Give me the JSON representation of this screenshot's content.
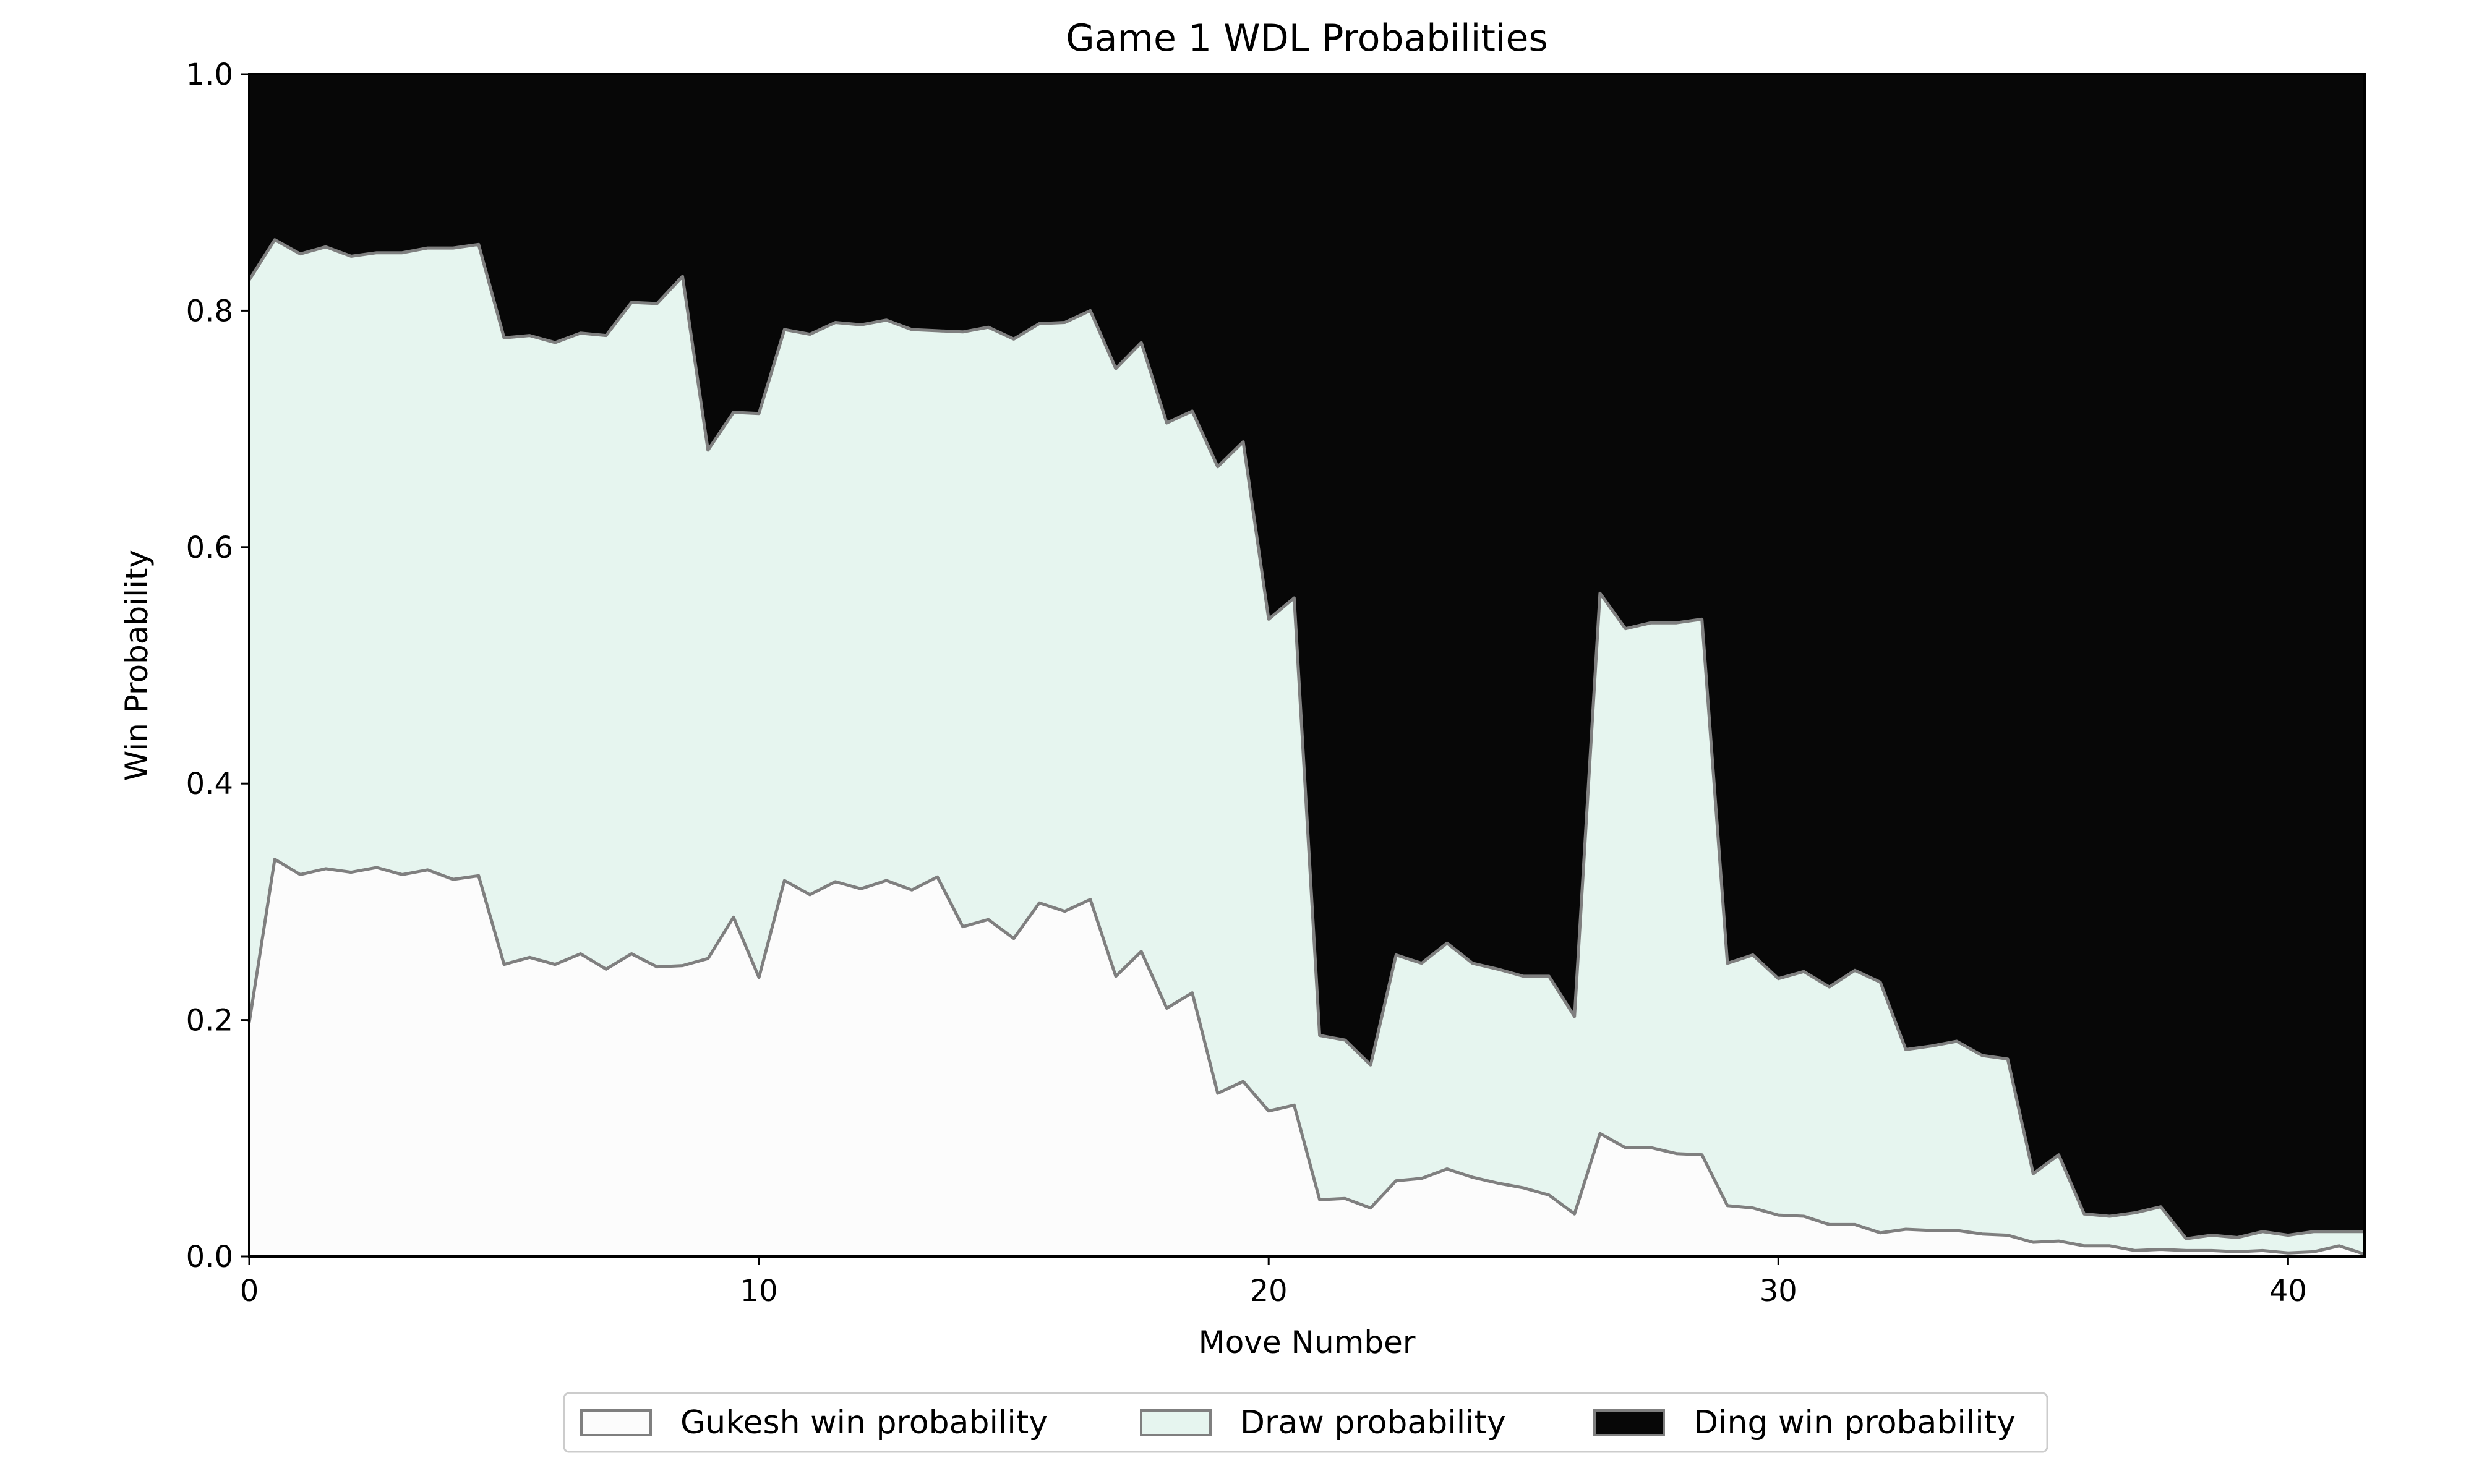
{
  "chart_data": {
    "type": "area",
    "stacked": true,
    "title": "Game 1 WDL Probabilities",
    "xlabel": "Move Number",
    "ylabel": "Win Probability",
    "xlim": [
      0,
      41.5
    ],
    "ylim": [
      0,
      1.0
    ],
    "x_ticks": [
      0,
      10,
      20,
      30,
      40
    ],
    "y_ticks": [
      0.0,
      0.2,
      0.4,
      0.6,
      0.8,
      1.0
    ],
    "grid": false,
    "legend_position": "bottom-center",
    "x": [
      0,
      0.5,
      1,
      1.5,
      2,
      2.5,
      3,
      3.5,
      4,
      4.5,
      5,
      5.5,
      6,
      6.5,
      7,
      7.5,
      8,
      8.5,
      9,
      9.5,
      10,
      10.5,
      11,
      11.5,
      12,
      12.5,
      13,
      13.5,
      14,
      14.5,
      15,
      15.5,
      16,
      16.5,
      17,
      17.5,
      18,
      18.5,
      19,
      19.5,
      20,
      20.5,
      21,
      21.5,
      22,
      22.5,
      23,
      23.5,
      24,
      24.5,
      25,
      25.5,
      26,
      26.5,
      27,
      27.5,
      28,
      28.5,
      29,
      29.5,
      30,
      30.5,
      31,
      31.5,
      32,
      32.5,
      33,
      33.5,
      34,
      34.5,
      35,
      35.5,
      36,
      36.5,
      37,
      37.5,
      38,
      38.5,
      39,
      39.5,
      40,
      40.5,
      41,
      41.5
    ],
    "series": [
      {
        "name": "Gukesh win probability",
        "color": "#fcfcfc",
        "values": [
          0.198,
          0.336,
          0.323,
          0.328,
          0.325,
          0.329,
          0.323,
          0.327,
          0.319,
          0.322,
          0.247,
          0.253,
          0.247,
          0.256,
          0.243,
          0.256,
          0.245,
          0.246,
          0.252,
          0.287,
          0.236,
          0.318,
          0.306,
          0.317,
          0.311,
          0.318,
          0.31,
          0.321,
          0.279,
          0.285,
          0.269,
          0.299,
          0.292,
          0.302,
          0.237,
          0.258,
          0.21,
          0.223,
          0.138,
          0.148,
          0.123,
          0.128,
          0.048,
          0.049,
          0.041,
          0.064,
          0.066,
          0.074,
          0.067,
          0.062,
          0.058,
          0.052,
          0.036,
          0.104,
          0.092,
          0.092,
          0.087,
          0.086,
          0.043,
          0.041,
          0.035,
          0.034,
          0.027,
          0.027,
          0.02,
          0.023,
          0.022,
          0.022,
          0.019,
          0.018,
          0.012,
          0.013,
          0.009,
          0.009,
          0.005,
          0.006,
          0.005,
          0.005,
          0.004,
          0.005,
          0.003,
          0.004,
          0.009,
          0.002
        ]
      },
      {
        "name": "Draw probability",
        "color": "#e6f5ef",
        "values": [
          0.628,
          0.524,
          0.525,
          0.526,
          0.521,
          0.52,
          0.526,
          0.526,
          0.534,
          0.534,
          0.53,
          0.526,
          0.526,
          0.525,
          0.536,
          0.551,
          0.561,
          0.583,
          0.43,
          0.427,
          0.477,
          0.466,
          0.474,
          0.473,
          0.477,
          0.474,
          0.474,
          0.462,
          0.503,
          0.501,
          0.507,
          0.49,
          0.498,
          0.498,
          0.514,
          0.515,
          0.495,
          0.492,
          0.53,
          0.541,
          0.416,
          0.429,
          0.139,
          0.134,
          0.121,
          0.191,
          0.182,
          0.191,
          0.181,
          0.181,
          0.179,
          0.185,
          0.167,
          0.457,
          0.439,
          0.444,
          0.449,
          0.453,
          0.205,
          0.214,
          0.2,
          0.207,
          0.201,
          0.215,
          0.212,
          0.152,
          0.156,
          0.16,
          0.151,
          0.149,
          0.058,
          0.073,
          0.027,
          0.025,
          0.032,
          0.036,
          0.01,
          0.013,
          0.012,
          0.016,
          0.015,
          0.017,
          0.012,
          0.019
        ]
      },
      {
        "name": "Ding win probability",
        "color": "#070707",
        "values": [
          0.174,
          0.14,
          0.152,
          0.146,
          0.154,
          0.151,
          0.151,
          0.147,
          0.147,
          0.144,
          0.223,
          0.221,
          0.227,
          0.219,
          0.221,
          0.193,
          0.194,
          0.171,
          0.318,
          0.286,
          0.287,
          0.216,
          0.22,
          0.21,
          0.212,
          0.208,
          0.216,
          0.217,
          0.218,
          0.214,
          0.224,
          0.211,
          0.21,
          0.2,
          0.249,
          0.227,
          0.295,
          0.285,
          0.332,
          0.311,
          0.461,
          0.443,
          0.813,
          0.817,
          0.838,
          0.745,
          0.752,
          0.735,
          0.752,
          0.757,
          0.763,
          0.763,
          0.797,
          0.439,
          0.469,
          0.464,
          0.464,
          0.461,
          0.752,
          0.745,
          0.765,
          0.759,
          0.772,
          0.758,
          0.768,
          0.825,
          0.822,
          0.818,
          0.83,
          0.833,
          0.93,
          0.914,
          0.964,
          0.966,
          0.963,
          0.958,
          0.985,
          0.982,
          0.984,
          0.979,
          0.982,
          0.979,
          0.979,
          0.979
        ]
      }
    ]
  }
}
